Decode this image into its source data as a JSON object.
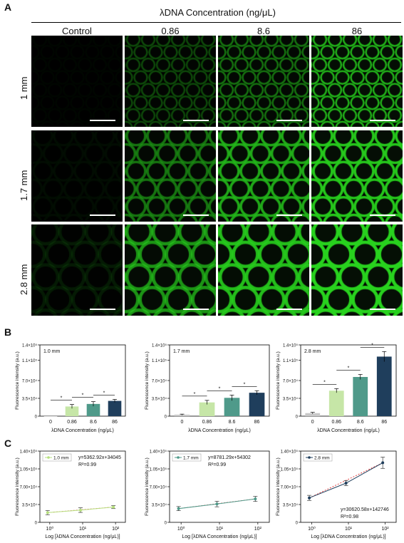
{
  "panel_a": {
    "letter": "A",
    "title": "λDNA Concentration (ng/μL)",
    "columns": [
      "Control",
      "0.86",
      "8.6",
      "86"
    ],
    "rows": [
      "1 mm",
      "1.7 mm",
      "2.8 mm"
    ],
    "brightness": [
      [
        0.03,
        0.35,
        0.55,
        0.85
      ],
      [
        0.06,
        0.55,
        0.8,
        0.95
      ],
      [
        0.12,
        0.7,
        0.9,
        1.0
      ]
    ],
    "ring_color": "#22c41a"
  },
  "panel_b": {
    "letter": "B",
    "ytick_labels": [
      "0",
      "3.5×10⁴",
      "7.0×10⁴",
      "1.1×10⁵",
      "1.4×10⁵"
    ],
    "xlabel": "λDNA Concentration (ng/μL)",
    "ylabel": "Fluorescence intensity (a.u.)",
    "significance": "*",
    "bar_colors": [
      "#c9c9c9",
      "#c6e6a7",
      "#4f9a8a",
      "#1f3e5c"
    ]
  },
  "panel_c": {
    "letter": "C",
    "ytick_labels": [
      "0",
      "3.5×10⁴",
      "7.00×10⁴",
      "1.05×10⁵",
      "1.40×10⁵"
    ],
    "xtick_labels": [
      "10⁰",
      "10¹",
      "10²"
    ],
    "xlabel": "Log [λDNA Concentration (ng/μL)]",
    "ylabel": "Fluorescence intensity (a.u.)"
  },
  "chart_data": [
    {
      "type": "bar",
      "label": "1.0 mm",
      "categories": [
        "0",
        "0.86",
        "8.6",
        "86"
      ],
      "values": [
        0,
        19000,
        24000,
        30000
      ],
      "errors": [
        0,
        4000,
        4500,
        3000
      ],
      "ylim": [
        0,
        140000
      ]
    },
    {
      "type": "bar",
      "label": "1.7 mm",
      "categories": [
        "0",
        "0.86",
        "8.6",
        "86"
      ],
      "values": [
        3000,
        27000,
        36000,
        46000
      ],
      "errors": [
        1000,
        4000,
        5500,
        4000
      ],
      "ylim": [
        0,
        140000
      ]
    },
    {
      "type": "bar",
      "label": "2.8 mm",
      "categories": [
        "0",
        "0.86",
        "8.6",
        "86"
      ],
      "values": [
        6000,
        50000,
        77000,
        117000
      ],
      "errors": [
        1500,
        4000,
        5000,
        10000
      ],
      "ylim": [
        0,
        140000
      ]
    },
    {
      "type": "line",
      "legend": "1.0 mm",
      "x": [
        0.86,
        8.6,
        86
      ],
      "y": [
        19000,
        24000,
        30000
      ],
      "errors": [
        4000,
        4500,
        3000
      ],
      "equation": "y=5362.92x+34045",
      "r2": "R²=0.99",
      "color": "#b6e07d",
      "ylim": [
        0,
        140000
      ]
    },
    {
      "type": "line",
      "legend": "1.7 mm",
      "x": [
        0.86,
        8.6,
        86
      ],
      "y": [
        27000,
        36000,
        46000
      ],
      "errors": [
        4000,
        5500,
        5000
      ],
      "equation": "y=8781.29x+54302",
      "r2": "R²=0.99",
      "color": "#4f9a8a",
      "ylim": [
        0,
        140000
      ]
    },
    {
      "type": "line",
      "legend": "2.8 mm",
      "x": [
        0.86,
        8.6,
        86
      ],
      "y": [
        48000,
        77000,
        117000
      ],
      "errors": [
        5000,
        5000,
        11000
      ],
      "equation": "y=30620.58x+142746",
      "r2": "R²=0.98",
      "color": "#1f3e5c",
      "ylim": [
        0,
        140000
      ]
    }
  ]
}
